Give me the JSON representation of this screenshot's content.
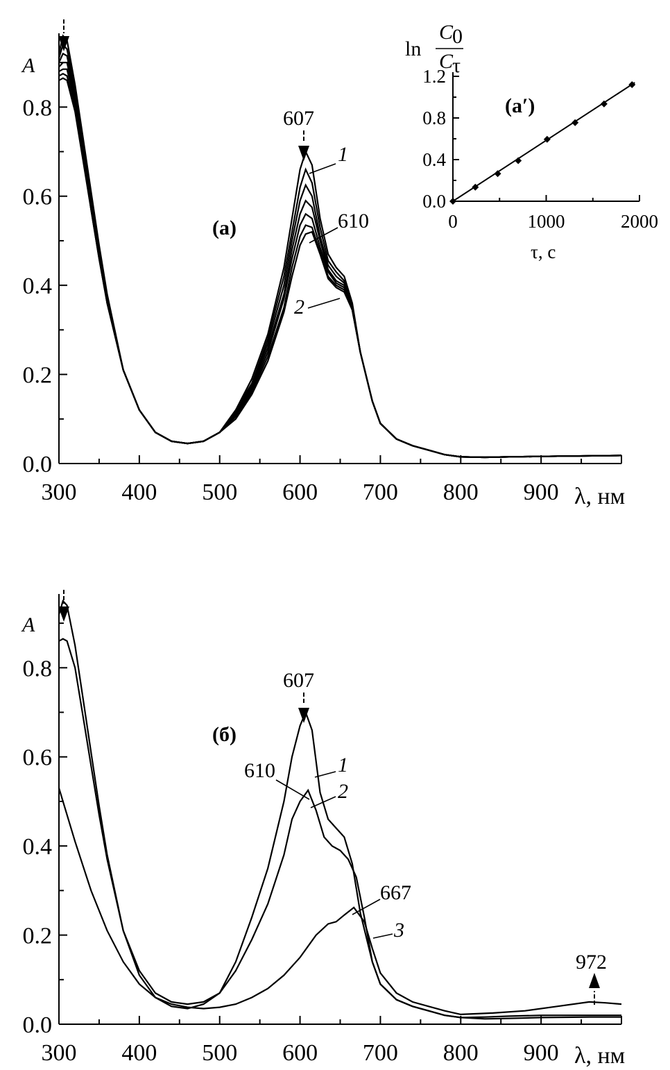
{
  "chart_data": [
    {
      "id": "a",
      "type": "line",
      "panel_label": "(a)",
      "xlabel": "λ, нм",
      "ylabel": "A",
      "xlim": [
        300,
        1000
      ],
      "ylim": [
        0,
        0.95
      ],
      "x_ticks": [
        300,
        400,
        500,
        600,
        700,
        800,
        900
      ],
      "y_ticks": [
        "0.0",
        "0.2",
        "0.4",
        "0.6",
        "0.8"
      ],
      "annotations": [
        "607",
        "610",
        "1",
        "2"
      ],
      "series": [
        {
          "x": [
            300,
            305,
            310,
            320,
            330,
            340,
            350,
            360,
            380,
            400,
            420,
            440,
            460,
            480,
            500,
            520,
            540,
            560,
            580,
            590,
            600,
            607,
            615,
            625,
            635,
            645,
            655,
            665,
            675,
            690,
            700,
            720,
            740,
            760,
            780,
            800,
            830,
            860,
            900,
            1000
          ],
          "y": [
            0.92,
            0.96,
            0.95,
            0.85,
            0.73,
            0.61,
            0.49,
            0.38,
            0.21,
            0.12,
            0.07,
            0.05,
            0.045,
            0.05,
            0.07,
            0.12,
            0.19,
            0.29,
            0.44,
            0.55,
            0.66,
            0.7,
            0.67,
            0.55,
            0.47,
            0.44,
            0.42,
            0.36,
            0.25,
            0.14,
            0.09,
            0.055,
            0.04,
            0.03,
            0.02,
            0.015,
            0.014,
            0.015,
            0.016,
            0.018
          ]
        },
        {
          "x": [
            300,
            305,
            310,
            320,
            330,
            340,
            350,
            360,
            380,
            400,
            420,
            440,
            460,
            480,
            500,
            520,
            540,
            560,
            580,
            590,
            600,
            607,
            615,
            625,
            635,
            645,
            655,
            665,
            675,
            690,
            700,
            720,
            740,
            760,
            780,
            800,
            830,
            860,
            900,
            1000
          ],
          "y": [
            0.91,
            0.94,
            0.93,
            0.84,
            0.72,
            0.6,
            0.48,
            0.37,
            0.21,
            0.12,
            0.07,
            0.05,
            0.045,
            0.05,
            0.07,
            0.12,
            0.18,
            0.28,
            0.42,
            0.52,
            0.62,
            0.66,
            0.63,
            0.53,
            0.455,
            0.43,
            0.41,
            0.35,
            0.25,
            0.14,
            0.09,
            0.055,
            0.04,
            0.03,
            0.02,
            0.015,
            0.014,
            0.015,
            0.016,
            0.018
          ]
        },
        {
          "x": [
            300,
            305,
            310,
            320,
            330,
            340,
            350,
            360,
            380,
            400,
            420,
            440,
            460,
            480,
            500,
            520,
            540,
            560,
            580,
            590,
            600,
            607,
            615,
            625,
            635,
            645,
            655,
            665,
            675,
            690,
            700,
            720,
            740,
            760,
            780,
            800,
            830,
            860,
            900,
            1000
          ],
          "y": [
            0.9,
            0.92,
            0.915,
            0.83,
            0.71,
            0.59,
            0.48,
            0.37,
            0.21,
            0.12,
            0.07,
            0.05,
            0.045,
            0.05,
            0.07,
            0.115,
            0.175,
            0.27,
            0.4,
            0.5,
            0.59,
            0.625,
            0.6,
            0.51,
            0.445,
            0.42,
            0.405,
            0.35,
            0.25,
            0.14,
            0.09,
            0.055,
            0.04,
            0.03,
            0.02,
            0.015,
            0.014,
            0.015,
            0.016,
            0.018
          ]
        },
        {
          "x": [
            300,
            305,
            310,
            320,
            330,
            340,
            350,
            360,
            380,
            400,
            420,
            440,
            460,
            480,
            500,
            520,
            540,
            560,
            580,
            590,
            600,
            607,
            615,
            625,
            635,
            645,
            655,
            665,
            675,
            690,
            700,
            720,
            740,
            760,
            780,
            800,
            830,
            860,
            900,
            1000
          ],
          "y": [
            0.89,
            0.9,
            0.9,
            0.82,
            0.7,
            0.58,
            0.47,
            0.37,
            0.21,
            0.12,
            0.07,
            0.05,
            0.045,
            0.05,
            0.07,
            0.11,
            0.17,
            0.26,
            0.38,
            0.48,
            0.56,
            0.59,
            0.575,
            0.5,
            0.435,
            0.41,
            0.4,
            0.35,
            0.25,
            0.14,
            0.09,
            0.055,
            0.04,
            0.03,
            0.02,
            0.015,
            0.014,
            0.015,
            0.016,
            0.018
          ]
        },
        {
          "x": [
            300,
            305,
            310,
            320,
            330,
            340,
            350,
            360,
            380,
            400,
            420,
            440,
            460,
            480,
            500,
            520,
            540,
            560,
            580,
            590,
            600,
            607,
            615,
            625,
            635,
            645,
            655,
            665,
            675,
            690,
            700,
            720,
            740,
            760,
            780,
            800,
            830,
            860,
            900,
            1000
          ],
          "y": [
            0.88,
            0.885,
            0.885,
            0.81,
            0.7,
            0.58,
            0.47,
            0.36,
            0.21,
            0.12,
            0.07,
            0.05,
            0.045,
            0.05,
            0.07,
            0.11,
            0.165,
            0.25,
            0.37,
            0.46,
            0.535,
            0.56,
            0.55,
            0.485,
            0.43,
            0.405,
            0.395,
            0.345,
            0.25,
            0.14,
            0.09,
            0.055,
            0.04,
            0.03,
            0.02,
            0.015,
            0.014,
            0.015,
            0.016,
            0.018
          ]
        },
        {
          "x": [
            300,
            305,
            310,
            320,
            330,
            340,
            350,
            360,
            380,
            400,
            420,
            440,
            460,
            480,
            500,
            520,
            540,
            560,
            580,
            590,
            600,
            607,
            615,
            625,
            635,
            645,
            655,
            665,
            675,
            690,
            700,
            720,
            740,
            760,
            780,
            800,
            830,
            860,
            900,
            1000
          ],
          "y": [
            0.87,
            0.875,
            0.87,
            0.8,
            0.69,
            0.57,
            0.46,
            0.36,
            0.21,
            0.12,
            0.07,
            0.05,
            0.045,
            0.05,
            0.07,
            0.105,
            0.16,
            0.24,
            0.35,
            0.44,
            0.51,
            0.535,
            0.53,
            0.475,
            0.42,
            0.4,
            0.39,
            0.345,
            0.25,
            0.14,
            0.09,
            0.055,
            0.04,
            0.03,
            0.02,
            0.015,
            0.014,
            0.015,
            0.016,
            0.018
          ]
        },
        {
          "x": [
            300,
            305,
            310,
            320,
            330,
            340,
            350,
            360,
            380,
            400,
            420,
            440,
            460,
            480,
            500,
            520,
            540,
            560,
            580,
            590,
            600,
            607,
            615,
            625,
            635,
            645,
            655,
            665,
            675,
            690,
            700,
            720,
            740,
            760,
            780,
            800,
            830,
            860,
            900,
            1000
          ],
          "y": [
            0.86,
            0.865,
            0.86,
            0.79,
            0.68,
            0.57,
            0.46,
            0.36,
            0.21,
            0.12,
            0.07,
            0.05,
            0.045,
            0.05,
            0.07,
            0.1,
            0.155,
            0.23,
            0.34,
            0.42,
            0.49,
            0.515,
            0.52,
            0.47,
            0.415,
            0.395,
            0.385,
            0.345,
            0.25,
            0.14,
            0.09,
            0.055,
            0.04,
            0.03,
            0.02,
            0.015,
            0.014,
            0.015,
            0.016,
            0.018
          ]
        }
      ]
    },
    {
      "id": "a-prime",
      "type": "scatter",
      "panel_label": "(a′)",
      "xlabel": "τ, с",
      "ylabel_prefix": "ln",
      "ylabel_num": "C",
      "ylabel_num_sub": "0",
      "ylabel_den": "C",
      "ylabel_den_sub": "τ",
      "xlim": [
        0,
        2000
      ],
      "ylim": [
        0,
        1.2
      ],
      "x_ticks": [
        0,
        1000,
        2000
      ],
      "y_ticks": [
        "0.0",
        "0.4",
        "0.8",
        "1.2"
      ],
      "x": [
        0,
        240,
        480,
        700,
        1010,
        1310,
        1620,
        1920
      ],
      "y": [
        0.0,
        0.135,
        0.265,
        0.39,
        0.595,
        0.755,
        0.935,
        1.12
      ],
      "fit": {
        "x": [
          0,
          1950
        ],
        "y": [
          0.0,
          1.14
        ]
      }
    },
    {
      "id": "b",
      "type": "line",
      "panel_label": "(б)",
      "xlabel": "λ, нм",
      "ylabel": "A",
      "xlim": [
        300,
        1000
      ],
      "ylim": [
        0,
        0.95
      ],
      "x_ticks": [
        300,
        400,
        500,
        600,
        700,
        800,
        900
      ],
      "y_ticks": [
        "0.0",
        "0.2",
        "0.4",
        "0.6",
        "0.8"
      ],
      "annotations": [
        "607",
        "610",
        "667",
        "972",
        "1",
        "2",
        "3"
      ],
      "series": [
        {
          "x": [
            300,
            305,
            310,
            320,
            330,
            340,
            350,
            360,
            380,
            400,
            420,
            440,
            460,
            480,
            500,
            520,
            540,
            560,
            580,
            590,
            600,
            607,
            615,
            625,
            635,
            645,
            655,
            665,
            675,
            690,
            700,
            720,
            740,
            760,
            780,
            800,
            830,
            860,
            900,
            960,
            1000
          ],
          "y": [
            0.92,
            0.95,
            0.94,
            0.85,
            0.73,
            0.61,
            0.49,
            0.38,
            0.21,
            0.11,
            0.06,
            0.04,
            0.035,
            0.045,
            0.07,
            0.14,
            0.24,
            0.35,
            0.5,
            0.6,
            0.67,
            0.7,
            0.66,
            0.52,
            0.46,
            0.44,
            0.42,
            0.36,
            0.25,
            0.14,
            0.09,
            0.055,
            0.04,
            0.03,
            0.02,
            0.015,
            0.016,
            0.018,
            0.02,
            0.02,
            0.02
          ]
        },
        {
          "x": [
            300,
            305,
            310,
            320,
            330,
            340,
            350,
            360,
            380,
            400,
            420,
            440,
            460,
            480,
            500,
            520,
            540,
            560,
            580,
            590,
            600,
            610,
            620,
            630,
            640,
            650,
            660,
            670,
            680,
            690,
            700,
            720,
            740,
            760,
            780,
            800,
            830,
            860,
            900,
            960,
            1000
          ],
          "y": [
            0.86,
            0.865,
            0.86,
            0.8,
            0.69,
            0.58,
            0.47,
            0.37,
            0.21,
            0.12,
            0.07,
            0.05,
            0.045,
            0.05,
            0.07,
            0.12,
            0.19,
            0.27,
            0.38,
            0.46,
            0.5,
            0.525,
            0.48,
            0.42,
            0.4,
            0.39,
            0.37,
            0.33,
            0.24,
            0.14,
            0.09,
            0.055,
            0.04,
            0.03,
            0.02,
            0.015,
            0.012,
            0.013,
            0.015,
            0.016,
            0.016
          ]
        },
        {
          "x": [
            300,
            310,
            320,
            340,
            360,
            380,
            400,
            420,
            440,
            460,
            480,
            500,
            520,
            540,
            560,
            580,
            600,
            620,
            635,
            645,
            655,
            667,
            680,
            690,
            700,
            720,
            740,
            760,
            780,
            800,
            840,
            880,
            920,
            960,
            980,
            1000
          ],
          "y": [
            0.53,
            0.47,
            0.41,
            0.3,
            0.21,
            0.14,
            0.09,
            0.06,
            0.045,
            0.038,
            0.035,
            0.038,
            0.045,
            0.06,
            0.08,
            0.11,
            0.15,
            0.2,
            0.225,
            0.23,
            0.245,
            0.262,
            0.23,
            0.17,
            0.115,
            0.07,
            0.05,
            0.04,
            0.03,
            0.022,
            0.025,
            0.03,
            0.04,
            0.05,
            0.048,
            0.045
          ]
        }
      ]
    }
  ]
}
